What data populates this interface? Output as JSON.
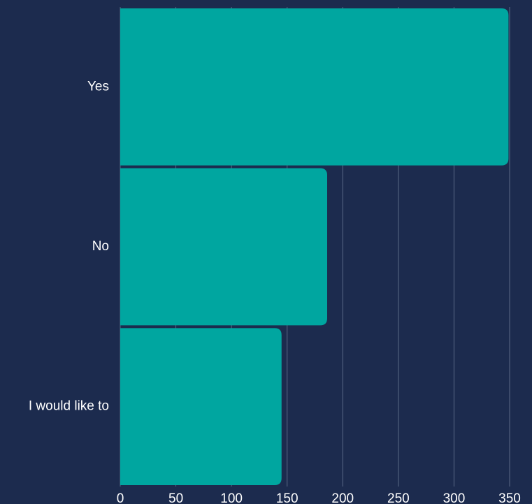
{
  "chart_data": {
    "type": "bar",
    "orientation": "horizontal",
    "categories": [
      "Yes",
      "No",
      "I would like to"
    ],
    "values": [
      349,
      186,
      145
    ],
    "xlim": [
      0,
      350
    ],
    "xticks": [
      "0",
      "50",
      "100",
      "150",
      "200",
      "250",
      "300",
      "350"
    ],
    "grid": true,
    "colors": {
      "background": "#1c2b4e",
      "bar": "#00a6a0",
      "grid": "#5b6a86",
      "text": "#ffffff"
    }
  }
}
